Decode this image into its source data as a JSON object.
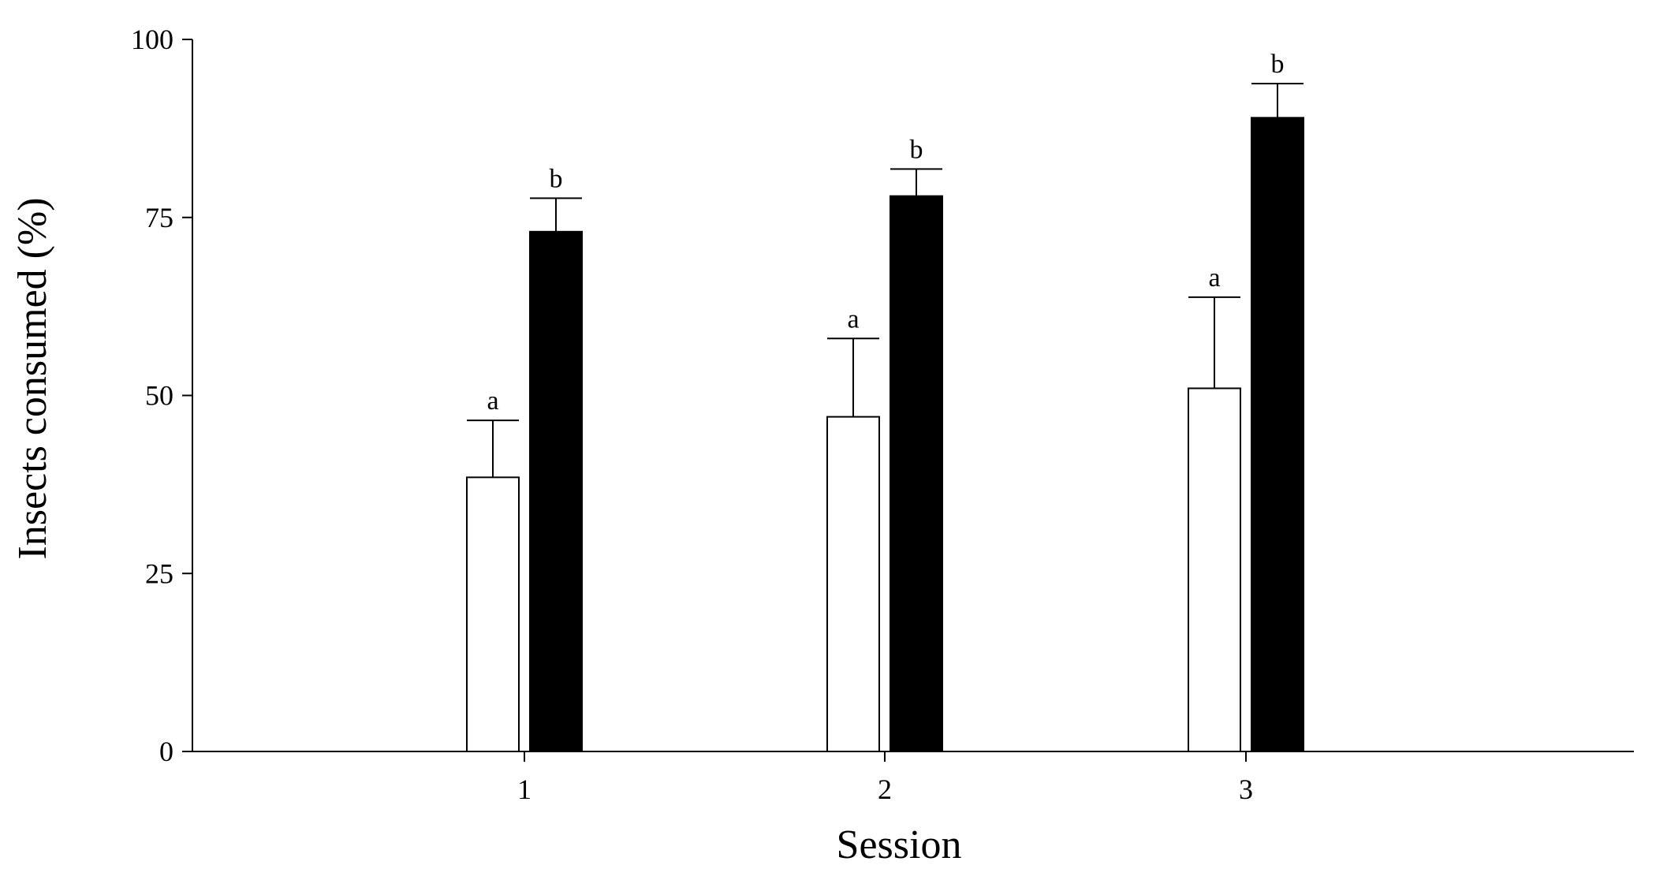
{
  "chart_data": {
    "type": "bar",
    "title": "",
    "xlabel": "Session",
    "ylabel": "Insects consumed (%)",
    "categories": [
      "1",
      "2",
      "3"
    ],
    "ylim": [
      0,
      100
    ],
    "yticks": [
      "0",
      "25",
      "50",
      "75",
      "100"
    ],
    "grid": false,
    "legend": "none",
    "series": [
      {
        "fill": "#ffffff",
        "values": [
          38.5,
          47,
          51
        ],
        "errors": [
          8,
          11,
          12.8
        ],
        "significance": [
          "a",
          "a",
          "a"
        ]
      },
      {
        "fill": "#000000",
        "values": [
          73,
          78,
          89
        ],
        "errors": [
          4.7,
          3.8,
          4.8
        ],
        "significance": [
          "b",
          "b",
          "b"
        ]
      }
    ]
  }
}
